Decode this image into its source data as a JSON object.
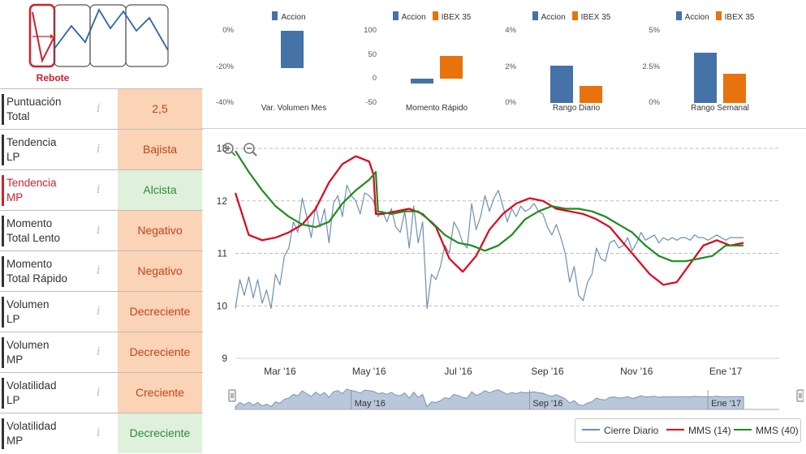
{
  "pattern": {
    "label": "Rebote",
    "icon": "rebound-pattern-icon"
  },
  "scores": [
    {
      "name": "Puntuación Total",
      "l1": "Puntuación",
      "l2": "Total",
      "value": "2,5",
      "tone": "neg",
      "highlight": false
    },
    {
      "name": "Tendencia LP",
      "l1": "Tendencia",
      "l2": "LP",
      "value": "Bajista",
      "tone": "neg",
      "highlight": false
    },
    {
      "name": "Tendencia MP",
      "l1": "Tendencia",
      "l2": "MP",
      "value": "Alcista",
      "tone": "pos",
      "highlight": true
    },
    {
      "name": "Momento Total Lento",
      "l1": "Momento",
      "l2": "Total Lento",
      "value": "Negativo",
      "tone": "neg",
      "highlight": false
    },
    {
      "name": "Momento Total Rápido",
      "l1": "Momento",
      "l2": "Total Rápido",
      "value": "Negativo",
      "tone": "neg",
      "highlight": false
    },
    {
      "name": "Volumen LP",
      "l1": "Volumen",
      "l2": "LP",
      "value": "Decreciente",
      "tone": "neg",
      "highlight": false
    },
    {
      "name": "Volumen MP",
      "l1": "Volumen",
      "l2": "MP",
      "value": "Decreciente",
      "tone": "neg",
      "highlight": false
    },
    {
      "name": "Volatilidad LP",
      "l1": "Volatilidad",
      "l2": "LP",
      "value": "Creciente",
      "tone": "neg",
      "highlight": false
    },
    {
      "name": "Volatilidad MP",
      "l1": "Volatilidad",
      "l2": "MP",
      "value": "Decreciente",
      "tone": "pos",
      "highlight": false
    }
  ],
  "info_glyph": "i",
  "colors": {
    "accion": "#4572a7",
    "ibex": "#e8720c",
    "daily": "#6e8fb5",
    "mms14": "#e2001a",
    "mms40": "#1e8c1e",
    "neg_bg": "#fbd3b6",
    "pos_bg": "#dff0dc"
  },
  "chart_data": [
    {
      "type": "bar",
      "title": "Var. Volumen Mes",
      "legend": [
        "Accion"
      ],
      "yticks": [
        "0%",
        "-20%",
        "-40%"
      ],
      "ylim": [
        -40,
        0
      ],
      "series": [
        {
          "name": "Accion",
          "values": [
            -20.5
          ]
        }
      ]
    },
    {
      "type": "bar",
      "title": "Momento Rápido",
      "legend": [
        "Accion",
        "IBEX 35"
      ],
      "yticks": [
        "100",
        "50",
        "0",
        "-50"
      ],
      "ylim": [
        -50,
        100
      ],
      "series": [
        {
          "name": "Accion",
          "values": [
            -10
          ]
        },
        {
          "name": "IBEX 35",
          "values": [
            48
          ]
        }
      ]
    },
    {
      "type": "bar",
      "title": "Rango Diario",
      "legend": [
        "Accion",
        "IBEX 35"
      ],
      "yticks": [
        "4%",
        "2%",
        "0%"
      ],
      "ylim": [
        0,
        4
      ],
      "series": [
        {
          "name": "Accion",
          "values": [
            2.05
          ]
        },
        {
          "name": "IBEX 35",
          "values": [
            0.95
          ]
        }
      ]
    },
    {
      "type": "bar",
      "title": "Rango Semanal",
      "legend": [
        "Accion",
        "IBEX 35"
      ],
      "yticks": [
        "5%",
        "2.5%",
        "0%"
      ],
      "ylim": [
        0,
        5
      ],
      "series": [
        {
          "name": "Accion",
          "values": [
            3.5
          ]
        },
        {
          "name": "IBEX 35",
          "values": [
            2.0
          ]
        }
      ]
    },
    {
      "type": "line",
      "title": "",
      "ylim": [
        9,
        13
      ],
      "yticks": [
        9,
        10,
        11,
        12,
        13
      ],
      "xlabels": [
        "Mar '16",
        "May '16",
        "Jul '16",
        "Sep '16",
        "Nov '16",
        "Ene '17"
      ],
      "xlabel_pos": [
        1.0,
        3.0,
        5.0,
        7.0,
        9.0,
        11.0
      ],
      "xlim": [
        0.0,
        12.2
      ],
      "navigator_labels": [
        "May '16",
        "Sep '16",
        "Ene '17"
      ],
      "series": [
        {
          "name": "Cierre Diario",
          "color": "#6e8fb5",
          "x": [
            0.0,
            0.1,
            0.2,
            0.3,
            0.4,
            0.5,
            0.6,
            0.7,
            0.8,
            0.9,
            1.0,
            1.1,
            1.2,
            1.3,
            1.4,
            1.5,
            1.6,
            1.7,
            1.8,
            1.9,
            2.0,
            2.1,
            2.2,
            2.3,
            2.4,
            2.5,
            2.6,
            2.7,
            2.8,
            2.9,
            3.0,
            3.1,
            3.2,
            3.3,
            3.4,
            3.5,
            3.6,
            3.7,
            3.8,
            3.9,
            4.0,
            4.1,
            4.2,
            4.3,
            4.4,
            4.5,
            4.6,
            4.7,
            4.8,
            4.9,
            5.0,
            5.1,
            5.2,
            5.3,
            5.4,
            5.5,
            5.6,
            5.7,
            5.8,
            5.9,
            6.0,
            6.1,
            6.2,
            6.3,
            6.4,
            6.5,
            6.6,
            6.7,
            6.8,
            6.9,
            7.0,
            7.1,
            7.2,
            7.3,
            7.4,
            7.5,
            7.6,
            7.7,
            7.8,
            7.9,
            8.0,
            8.1,
            8.2,
            8.3,
            8.4,
            8.5,
            8.6,
            8.7,
            8.8,
            8.9,
            9.0,
            9.1,
            9.2,
            9.3,
            9.4,
            9.5,
            9.6,
            9.7,
            9.8,
            9.9,
            10.0,
            10.1,
            10.2,
            10.3,
            10.4,
            10.5,
            10.6,
            10.7,
            10.8,
            10.9,
            11.0,
            11.1,
            11.2,
            11.3,
            11.4
          ],
          "values": [
            9.95,
            10.5,
            10.2,
            10.55,
            10.15,
            10.5,
            10.05,
            10.3,
            9.95,
            10.6,
            10.4,
            10.95,
            11.1,
            11.6,
            11.4,
            12.05,
            11.7,
            11.3,
            11.9,
            11.5,
            11.85,
            11.2,
            11.95,
            12.1,
            11.7,
            12.3,
            12.1,
            12.0,
            11.75,
            12.15,
            12.1,
            12.0,
            11.7,
            11.8,
            11.6,
            11.85,
            11.5,
            11.4,
            11.8,
            11.1,
            11.9,
            11.2,
            11.6,
            9.95,
            10.6,
            10.5,
            10.75,
            11.15,
            11.0,
            11.6,
            11.45,
            11.2,
            11.1,
            11.95,
            11.45,
            11.7,
            12.1,
            11.8,
            12.05,
            12.2,
            11.9,
            11.6,
            11.85,
            11.7,
            11.9,
            11.8,
            11.85,
            11.95,
            11.8,
            11.75,
            11.5,
            11.35,
            11.55,
            11.3,
            11.0,
            10.45,
            10.75,
            10.2,
            10.1,
            10.45,
            10.6,
            11.1,
            10.9,
            10.85,
            11.2,
            11.25,
            11.1,
            11.15,
            11.3,
            11.05,
            11.2,
            11.4,
            11.25,
            11.3,
            11.35,
            11.2,
            11.3,
            11.25,
            11.3,
            11.25,
            11.3,
            11.3,
            11.25,
            11.35,
            11.3,
            11.3,
            11.25,
            11.3,
            11.35,
            11.3,
            11.25,
            11.3,
            11.3,
            11.3,
            11.3
          ]
        },
        {
          "name": "MMS (14)",
          "color": "#e2001a",
          "x": [
            0.0,
            0.3,
            0.6,
            0.9,
            1.2,
            1.5,
            1.8,
            2.1,
            2.4,
            2.7,
            3.0,
            3.1,
            3.15,
            3.3,
            3.6,
            3.9,
            4.2,
            4.5,
            4.8,
            5.1,
            5.4,
            5.7,
            6.0,
            6.3,
            6.6,
            6.9,
            7.2,
            7.5,
            7.8,
            8.1,
            8.4,
            8.7,
            9.0,
            9.3,
            9.6,
            9.9,
            10.2,
            10.5,
            10.8,
            11.1,
            11.4
          ],
          "values": [
            12.15,
            11.35,
            11.25,
            11.3,
            11.4,
            11.55,
            11.85,
            12.35,
            12.7,
            12.85,
            12.75,
            12.5,
            11.75,
            11.75,
            11.8,
            11.85,
            11.75,
            11.5,
            10.9,
            10.65,
            10.95,
            11.45,
            11.75,
            11.95,
            12.05,
            12.0,
            11.85,
            11.8,
            11.75,
            11.65,
            11.5,
            11.2,
            10.9,
            10.6,
            10.4,
            10.45,
            10.8,
            11.15,
            11.25,
            11.15,
            11.2
          ]
        },
        {
          "name": "MMS (40)",
          "color": "#1e8c1e",
          "x": [
            0.0,
            0.3,
            0.6,
            0.9,
            1.2,
            1.5,
            1.8,
            2.1,
            2.4,
            2.7,
            3.0,
            3.15,
            3.2,
            3.5,
            3.8,
            4.1,
            4.4,
            4.7,
            5.0,
            5.3,
            5.6,
            5.9,
            6.2,
            6.5,
            6.8,
            7.1,
            7.4,
            7.7,
            8.0,
            8.3,
            8.6,
            8.9,
            9.2,
            9.5,
            9.8,
            10.1,
            10.4,
            10.7,
            11.0,
            11.4
          ],
          "values": [
            12.95,
            12.55,
            12.2,
            11.9,
            11.7,
            11.55,
            11.5,
            11.6,
            11.95,
            12.2,
            12.4,
            12.55,
            11.8,
            11.75,
            11.8,
            11.8,
            11.6,
            11.35,
            11.2,
            11.15,
            11.05,
            11.15,
            11.35,
            11.65,
            11.8,
            11.9,
            11.85,
            11.85,
            11.8,
            11.7,
            11.55,
            11.4,
            11.15,
            10.95,
            10.85,
            10.85,
            10.9,
            10.95,
            11.15,
            11.15
          ]
        }
      ]
    }
  ],
  "legend": {
    "daily": "Cierre Diario",
    "mms14": "MMS (14)",
    "mms40": "MMS (40)"
  },
  "zoom": {
    "in": "zoom-in-icon",
    "out": "zoom-out-icon"
  }
}
